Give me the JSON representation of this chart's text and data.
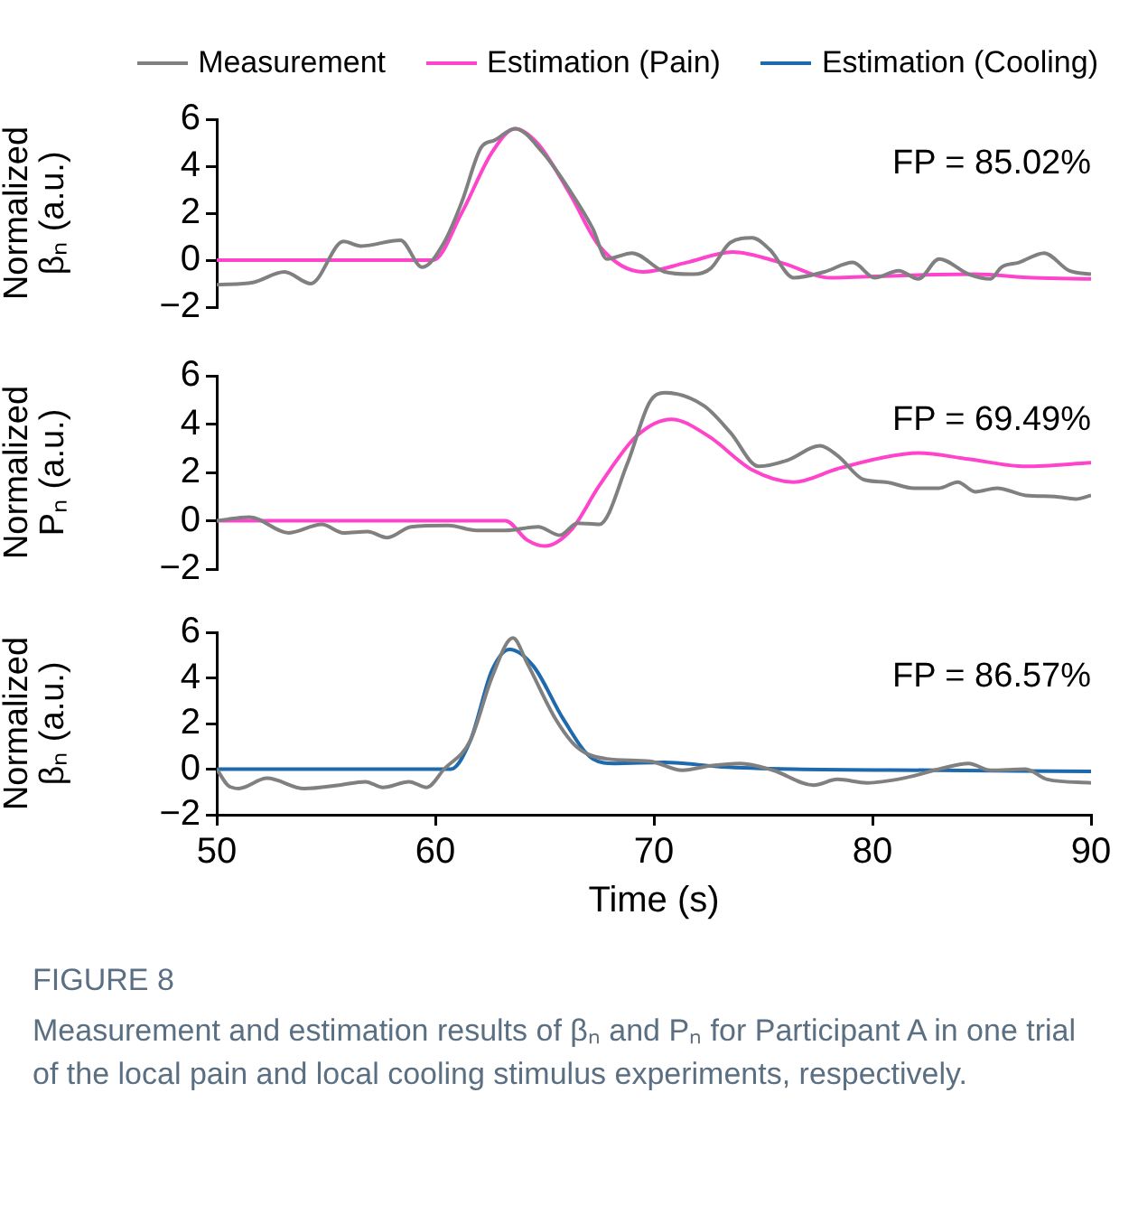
{
  "chart_data": [
    {
      "type": "line",
      "ylabel": "Normalized βₙ (a.u.)",
      "xlim": [
        50,
        90
      ],
      "xticks": [
        50,
        60,
        70,
        80,
        90
      ],
      "ylim": [
        -2,
        6
      ],
      "yticks": [
        -2,
        0,
        2,
        4,
        6
      ],
      "tick_labels": "y",
      "grid": false,
      "legend": "top",
      "marker": "none",
      "line_style": "solid",
      "annotations": [
        "FP = 85.02%"
      ],
      "series": [
        {
          "name": "Measurement",
          "color": "#808080",
          "x": [
            50,
            51.65,
            53.1,
            54.3,
            55.8,
            56.6,
            58.4,
            59.4,
            60.4,
            61.2,
            62.1,
            62.7,
            63.65,
            64.9,
            66.2,
            67.2,
            67.85,
            69,
            70.5,
            71.8,
            72.6,
            73.5,
            74.5,
            75.3,
            76.4,
            77.8,
            79.1,
            80.1,
            81.2,
            82.1,
            83.05,
            84.4,
            85.4,
            85.9,
            86.7,
            87.85,
            89,
            90
          ],
          "values": [
            -1.05,
            -0.95,
            -0.5,
            -1.0,
            0.8,
            0.6,
            0.85,
            -0.3,
            0.75,
            2.45,
            4.8,
            5.1,
            5.6,
            4.6,
            2.9,
            1.35,
            0.05,
            0.3,
            -0.5,
            -0.6,
            -0.35,
            0.75,
            0.95,
            0.45,
            -0.75,
            -0.5,
            -0.1,
            -0.75,
            -0.45,
            -0.8,
            0.05,
            -0.6,
            -0.8,
            -0.3,
            -0.1,
            0.3,
            -0.45,
            -0.6
          ]
        },
        {
          "name": "Estimation (Pain)",
          "color": "#ff44cc",
          "x": [
            50,
            59.9,
            61.2,
            62.6,
            63.65,
            64.7,
            66.2,
            67.5,
            69.5,
            71.5,
            73.6,
            75.8,
            78.1,
            81.4,
            84.7,
            87.35,
            90
          ],
          "values": [
            0,
            0,
            2.0,
            4.6,
            5.6,
            4.95,
            2.75,
            0.6,
            -0.5,
            -0.1,
            0.35,
            -0.1,
            -0.75,
            -0.65,
            -0.6,
            -0.75,
            -0.8
          ]
        }
      ]
    },
    {
      "type": "line",
      "ylabel": "Normalized Pₙ (a.u.)",
      "xlim": [
        50,
        90
      ],
      "xticks": [
        50,
        60,
        70,
        80,
        90
      ],
      "ylim": [
        -2,
        6
      ],
      "yticks": [
        -2,
        0,
        2,
        4,
        6
      ],
      "tick_labels": "y",
      "grid": false,
      "marker": "none",
      "line_style": "solid",
      "annotations": [
        "FP = 69.49%"
      ],
      "series": [
        {
          "color": "#808080",
          "x": [
            50,
            51.5,
            53.3,
            54.8,
            55.8,
            56.9,
            57.8,
            58.9,
            60.6,
            61.9,
            63.2,
            64.7,
            65.7,
            66.5,
            67.5,
            68.8,
            69.8,
            70.5,
            72.3,
            73.5,
            74.8,
            76.1,
            77.6,
            78.4,
            79.6,
            80.6,
            81.9,
            83.05,
            83.9,
            84.7,
            85.7,
            87,
            88.35,
            89.3,
            90
          ],
          "values": [
            0,
            0.15,
            -0.5,
            -0.15,
            -0.5,
            -0.45,
            -0.7,
            -0.25,
            -0.2,
            -0.4,
            -0.4,
            -0.25,
            -0.6,
            -0.1,
            -0.15,
            2.4,
            4.9,
            5.3,
            4.75,
            3.65,
            2.25,
            2.5,
            3.1,
            2.7,
            1.7,
            1.6,
            1.35,
            1.35,
            1.6,
            1.2,
            1.35,
            1.05,
            1.0,
            0.9,
            1.05
          ]
        },
        {
          "color": "#ff44cc",
          "x": [
            50,
            63.2,
            64.2,
            65,
            66.2,
            67.5,
            69.2,
            70.8,
            72.5,
            74.5,
            76.4,
            78.4,
            80.4,
            82.1,
            84.4,
            87,
            90
          ],
          "values": [
            0,
            0,
            -0.8,
            -1.05,
            -0.4,
            1.45,
            3.5,
            4.2,
            3.5,
            2.1,
            1.6,
            2.15,
            2.6,
            2.8,
            2.55,
            2.25,
            2.4
          ]
        }
      ]
    },
    {
      "type": "line",
      "ylabel": "Normalized βₙ (a.u.)",
      "xlabel": "Time (s)",
      "xlim": [
        50,
        90
      ],
      "xticks": [
        50,
        60,
        70,
        80,
        90
      ],
      "ylim": [
        -2,
        6
      ],
      "yticks": [
        -2,
        0,
        2,
        4,
        6
      ],
      "grid": false,
      "marker": "none",
      "line_style": "solid",
      "annotations": [
        "FP = 86.57%",
        "FIGURE 8",
        "Measurement and estimation results of βₙ and Pₙ for Participant A in one trial of the local pain and local cooling stimulus experiments, respectively."
      ],
      "series": [
        {
          "color": "#808080",
          "x": [
            50,
            50.5,
            51,
            52.3,
            54,
            55.6,
            56.8,
            57.6,
            58.8,
            59.6,
            60.4,
            61.6,
            62.6,
            63.55,
            64.2,
            65.5,
            66.5,
            67.85,
            69.8,
            71.3,
            72.6,
            73.95,
            75.45,
            77.3,
            78.4,
            79.75,
            81.4,
            83.05,
            84.4,
            85.4,
            87,
            88,
            90
          ],
          "values": [
            0,
            -0.7,
            -0.85,
            -0.4,
            -0.85,
            -0.7,
            -0.55,
            -0.8,
            -0.55,
            -0.8,
            0,
            1.25,
            4.05,
            5.75,
            4.65,
            2.2,
            0.95,
            0.45,
            0.35,
            -0.05,
            0.15,
            0.25,
            -0.05,
            -0.7,
            -0.45,
            -0.6,
            -0.4,
            0,
            0.25,
            -0.05,
            0,
            -0.45,
            -0.6
          ]
        },
        {
          "name": "Estimation (Cooling)",
          "color": "#1f6aad",
          "x": [
            50,
            60.7,
            61.6,
            62.6,
            63.4,
            64.5,
            65.85,
            67.2,
            68.2,
            70.5,
            73.1,
            76.4,
            83,
            90
          ],
          "values": [
            0,
            0,
            1.25,
            4.35,
            5.25,
            4.5,
            2.2,
            0.45,
            0.25,
            0.3,
            0.1,
            0,
            -0.05,
            -0.1
          ]
        }
      ]
    }
  ]
}
